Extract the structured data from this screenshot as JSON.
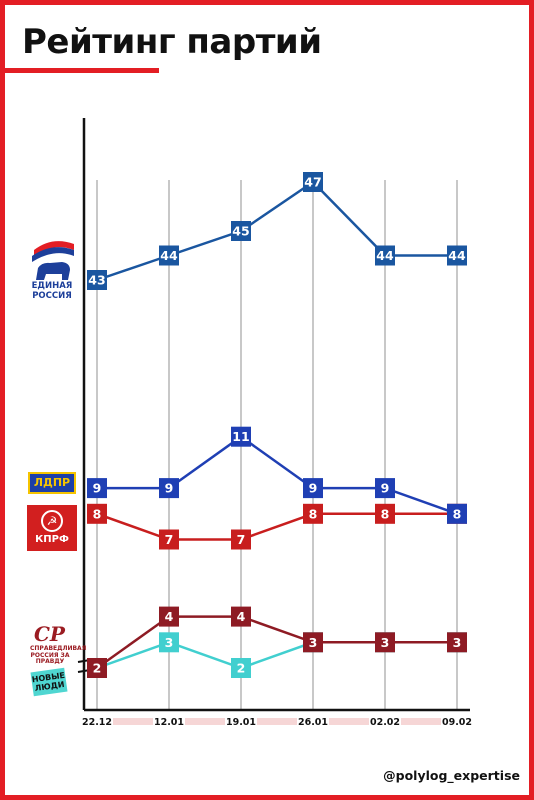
{
  "title": "Рейтинг партий",
  "handle": "@polylog_expertise",
  "logos": {
    "er": "ЕДИНАЯ РОССИЯ",
    "ldpr": "ЛДПР",
    "kprf": "КПРФ",
    "sr": "СР",
    "sr_sub": "СПРАВЕДЛИВАЯ РОССИЯ ЗА ПРАВДУ",
    "nl": "НОВЫЕ ЛЮДИ"
  },
  "colors": {
    "frame": "#e31e24",
    "er": "#1a56a0",
    "ldpr": "#1f3fb4",
    "kprf": "#c81e1e",
    "sr": "#8e1b24",
    "nl": "#41cfcf",
    "axis": "#111111",
    "date_band": "#f6d6d6"
  },
  "chart_data": {
    "type": "line",
    "title": "Рейтинг партий",
    "xlabel": "",
    "ylabel": "",
    "grid": "vertical lines at each date",
    "categories": [
      "22.12",
      "12.01",
      "19.01",
      "26.01",
      "02.02",
      "09.02"
    ],
    "series": [
      {
        "key": "er",
        "values": [
          43,
          44,
          45,
          47,
          44,
          44
        ]
      },
      {
        "key": "ldpr",
        "values": [
          9,
          9,
          11,
          9,
          9,
          8
        ]
      },
      {
        "key": "kprf",
        "values": [
          8,
          7,
          7,
          8,
          8,
          8
        ]
      },
      {
        "key": "sr",
        "values": [
          2,
          4,
          4,
          3,
          3,
          3
        ]
      },
      {
        "key": "nl",
        "values": [
          2,
          3,
          2,
          3,
          3,
          3
        ]
      }
    ]
  }
}
